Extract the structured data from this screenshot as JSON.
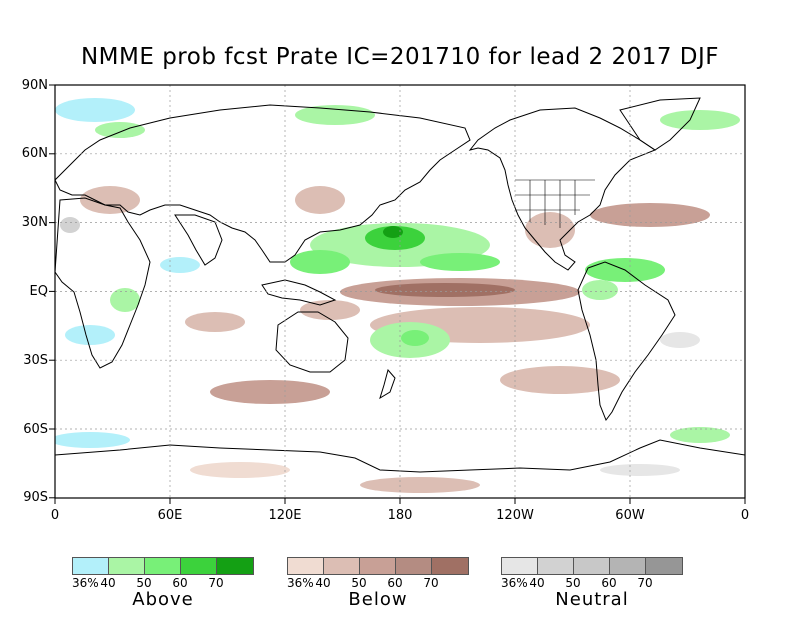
{
  "title": "NMME prob fcst Prate IC=201710 for lead 2 2017 DJF",
  "axes": {
    "y_labels": [
      "90N",
      "60N",
      "30N",
      "EQ",
      "30S",
      "60S",
      "90S"
    ],
    "x_labels": [
      "0",
      "60E",
      "120E",
      "180",
      "120W",
      "60W",
      "0"
    ]
  },
  "colors": {
    "above": [
      "#b3f0fa",
      "#aaf5a5",
      "#78f078",
      "#3cd23c",
      "#14a014"
    ],
    "below": [
      "#f0dcd2",
      "#dcbeb4",
      "#c8a096",
      "#b48c82",
      "#a07064"
    ],
    "neutral": [
      "#e6e6e6",
      "#d2d2d2",
      "#c8c8c8",
      "#b4b4b4",
      "#969696"
    ],
    "land_outline": "#000000",
    "grid": "#999999"
  },
  "legends": [
    {
      "name": "Above",
      "ticks": [
        "36%",
        "40",
        "50",
        "60",
        "70"
      ]
    },
    {
      "name": "Below",
      "ticks": [
        "36%",
        "40",
        "50",
        "60",
        "70"
      ]
    },
    {
      "name": "Neutral",
      "ticks": [
        "36%",
        "40",
        "50",
        "60",
        "70"
      ]
    }
  ]
}
